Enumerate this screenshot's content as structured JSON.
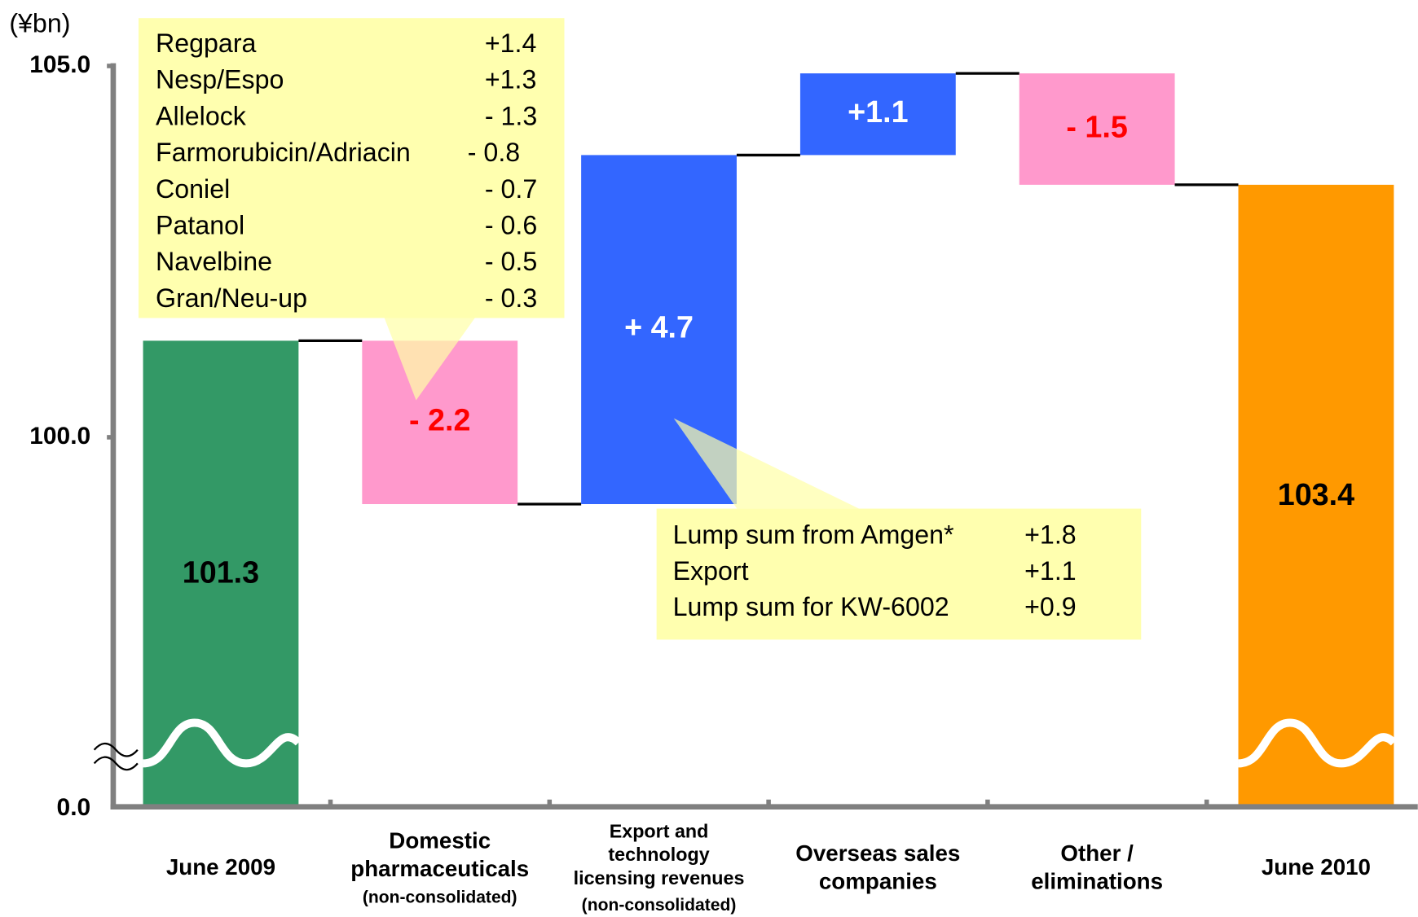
{
  "chart_data": {
    "type": "waterfall",
    "y_unit": "(¥bn)",
    "categories": [
      "June 2009",
      "Domestic pharmaceuticals",
      "Export and technology licensing revenues",
      "Overseas sales companies",
      "Other / eliminations",
      "June 2010"
    ],
    "category_notes": [
      null,
      "(non-consolidated)",
      "(non-consolidated)",
      null,
      null,
      null
    ],
    "measures": [
      "total",
      "relative",
      "relative",
      "relative",
      "relative",
      "total"
    ],
    "values": [
      101.3,
      -2.2,
      4.7,
      1.1,
      -1.5,
      103.4
    ],
    "value_labels": [
      "101.3",
      "- 2.2",
      "+ 4.7",
      "+1.1",
      "- 1.5",
      "103.4"
    ],
    "colors": [
      "#339966",
      "#ff99cc",
      "#3366ff",
      "#3366ff",
      "#ff99cc",
      "#ff9900"
    ],
    "label_colors": [
      "#000000",
      "#ff0000",
      "#ffffff",
      "#ffffff",
      "#ff0000",
      "#000000"
    ],
    "ylim": [
      0,
      105
    ],
    "ybreak": [
      0,
      95
    ],
    "yticks": [
      {
        "value": 0,
        "label": "0.0"
      },
      {
        "value": 100,
        "label": "100.0"
      },
      {
        "value": 105,
        "label": "105.0"
      }
    ],
    "callouts": [
      {
        "items": [
          {
            "name": "Regpara",
            "value": "+1.4"
          },
          {
            "name": "Nesp/Espo",
            "value": "+1.3"
          },
          {
            "name": "Allelock",
            "value": "- 1.3"
          },
          {
            "name": "Farmorubicin/Adriacin",
            "value": "- 0.8"
          },
          {
            "name": "Coniel",
            "value": "- 0.7"
          },
          {
            "name": "Patanol",
            "value": "- 0.6"
          },
          {
            "name": "Navelbine",
            "value": "- 0.5"
          },
          {
            "name": "Gran/Neu-up",
            "value": "- 0.3"
          }
        ]
      },
      {
        "items": [
          {
            "name": "Lump sum from Amgen*",
            "value": "+1.8"
          },
          {
            "name": "Export",
            "value": "+1.1"
          },
          {
            "name": "Lump sum for KW-6002",
            "value": "+0.9"
          }
        ]
      }
    ]
  }
}
